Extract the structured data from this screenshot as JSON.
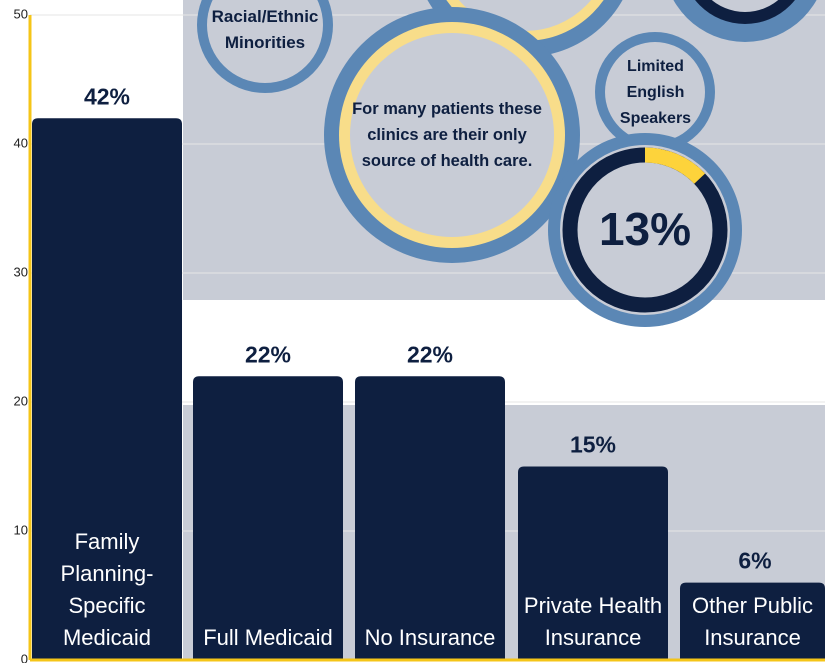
{
  "chart_data": {
    "type": "bar",
    "categories": [
      "Family Planning-Specific Medicaid",
      "Full Medicaid",
      "No Insurance",
      "Private Health Insurance",
      "Other Public Insurance"
    ],
    "values": [
      42,
      22,
      22,
      15,
      6
    ],
    "value_labels": [
      "42%",
      "22%",
      "22%",
      "15%",
      "6%"
    ],
    "color": "#0e1f40",
    "ylim": [
      0,
      50
    ],
    "yticks": [
      0,
      10,
      20,
      30,
      40,
      50
    ],
    "grid": true
  },
  "bubbles": [
    "Racial/Ethnic Minorities",
    "For many patients these clinics are their only source of health care.",
    "Limited English Speakers"
  ],
  "donut": {
    "value": 13,
    "label": "13%"
  }
}
